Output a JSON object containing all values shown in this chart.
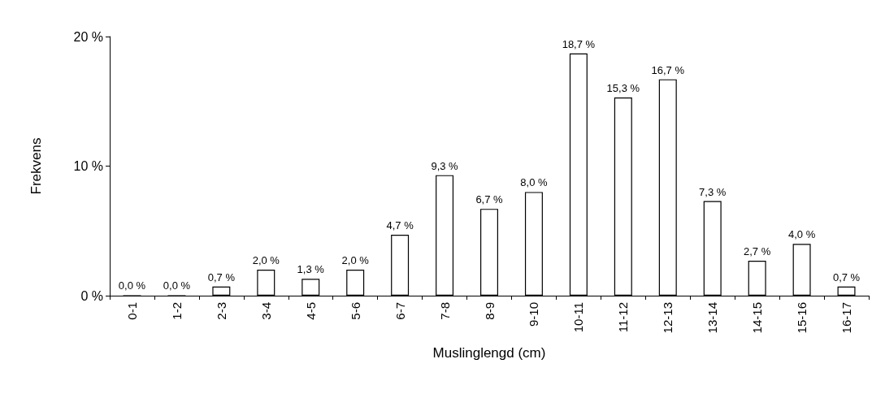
{
  "chart_data": {
    "type": "bar",
    "xlabel": "Muslinglengd (cm)",
    "ylabel": "Frekvens",
    "categories": [
      "0-1",
      "1-2",
      "2-3",
      "3-4",
      "4-5",
      "5-6",
      "6-7",
      "7-8",
      "8-9",
      "9-10",
      "10-11",
      "11-12",
      "12-13",
      "13-14",
      "14-15",
      "15-16",
      "16-17"
    ],
    "values": [
      0,
      0,
      0.7,
      2.0,
      1.3,
      2.0,
      4.7,
      9.3,
      6.7,
      8.0,
      18.7,
      15.3,
      16.7,
      7.3,
      2.7,
      4.0,
      0.7
    ],
    "value_labels": [
      "0,0 %",
      "0,0 %",
      "0,7 %",
      "2,0 %",
      "1,3 %",
      "2,0 %",
      "4,7 %",
      "9,3 %",
      "6,7 %",
      "8,0 %",
      "18,7 %",
      "15,3 %",
      "16,7 %",
      "7,3 %",
      "2,7 %",
      "4,0 %",
      "0,7 %"
    ],
    "color": "#ffffff",
    "ylim": [
      0,
      20
    ],
    "yticks": [
      {
        "value": 0,
        "label": "0 %"
      },
      {
        "value": 10,
        "label": "10 %"
      },
      {
        "value": 20,
        "label": "20 %"
      }
    ],
    "grid": false
  }
}
